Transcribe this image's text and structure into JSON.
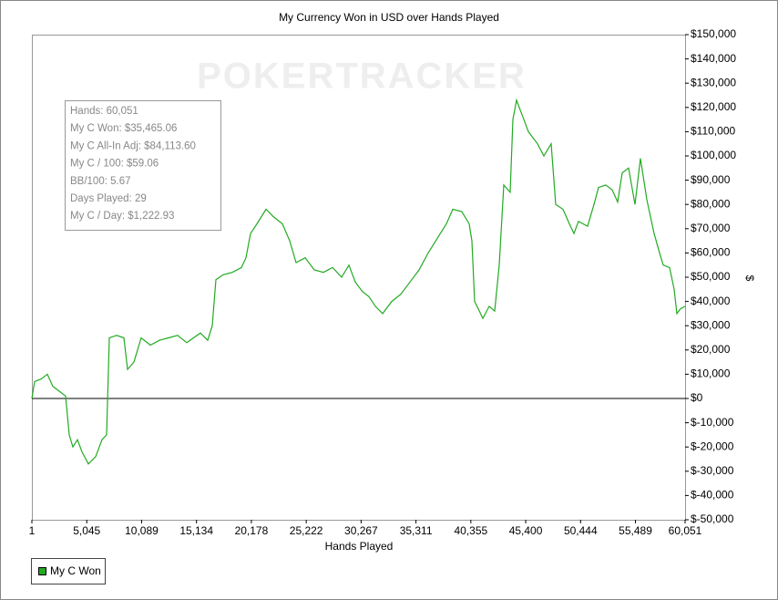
{
  "chart_data": {
    "type": "line",
    "title": "My Currency Won in USD over Hands Played",
    "watermark": "POKERTRACKER",
    "x_label": "Hands Played",
    "y_label": "$",
    "annotations": [
      "Hands: 60,051",
      "My C Won: $35,465.06",
      "My C All-In Adj: $84,113.60",
      "My C / 100: $59.06",
      "BB/100: 5.67",
      "Days Played: 29",
      "My C / Day: $1,222.93"
    ],
    "zero_line": true,
    "legend": "bottom-left",
    "xlim": [
      1,
      60051
    ],
    "xticks": [
      1,
      {
        "value": 5045,
        "label": "5,045"
      },
      {
        "value": 10089,
        "label": "10,089"
      },
      {
        "value": 15134,
        "label": "15,134"
      },
      {
        "value": 20178,
        "label": "20,178"
      },
      {
        "value": 25222,
        "label": "25,222"
      },
      {
        "value": 30267,
        "label": "30,267"
      },
      {
        "value": 35311,
        "label": "35,311"
      },
      {
        "value": 40355,
        "label": "40,355"
      },
      {
        "value": 45400,
        "label": "45,400"
      },
      {
        "value": 50444,
        "label": "50,444"
      },
      {
        "value": 55489,
        "label": "55,489"
      },
      {
        "value": 60051,
        "label": "60,051"
      }
    ],
    "ylim": [
      -50000,
      150000
    ],
    "yticks": [
      {
        "value": -50000,
        "label": "$-50,000"
      },
      {
        "value": -40000,
        "label": "$-40,000"
      },
      {
        "value": -30000,
        "label": "$-30,000"
      },
      {
        "value": -20000,
        "label": "$-20,000"
      },
      {
        "value": -10000,
        "label": "$-10,000"
      },
      {
        "value": 0,
        "label": "$0"
      },
      {
        "value": 10000,
        "label": "$10,000"
      },
      {
        "value": 20000,
        "label": "$20,000"
      },
      {
        "value": 30000,
        "label": "$30,000"
      },
      {
        "value": 40000,
        "label": "$40,000"
      },
      {
        "value": 50000,
        "label": "$50,000"
      },
      {
        "value": 60000,
        "label": "$60,000"
      },
      {
        "value": 70000,
        "label": "$70,000"
      },
      {
        "value": 80000,
        "label": "$80,000"
      },
      {
        "value": 90000,
        "label": "$90,000"
      },
      {
        "value": 100000,
        "label": "$100,000"
      },
      {
        "value": 110000,
        "label": "$110,000"
      },
      {
        "value": 120000,
        "label": "$120,000"
      },
      {
        "value": 130000,
        "label": "$130,000"
      },
      {
        "value": 140000,
        "label": "$140,000"
      },
      {
        "value": 150000,
        "label": "$150,000"
      }
    ],
    "x": [
      1,
      252,
      839,
      1425,
      1927,
      2514,
      3100,
      3435,
      3770,
      4189,
      4607,
      5194,
      5864,
      6450,
      6869,
      7120,
      7790,
      8460,
      8795,
      9381,
      10051,
      10889,
      11726,
      12564,
      13401,
      14239,
      15495,
      16165,
      16584,
      16918,
      17588,
      18426,
      19263,
      19681,
      20101,
      20687,
      21525,
      22194,
      23032,
      23702,
      24288,
      25126,
      25963,
      26801,
      27638,
      28476,
      29146,
      29732,
      30402,
      30989,
      31575,
      32245,
      33082,
      33920,
      34757,
      35595,
      36432,
      37270,
      38107,
      38694,
      39531,
      40201,
      40452,
      40704,
      41039,
      41457,
      42044,
      42546,
      42965,
      43384,
      43970,
      44221,
      44556,
      45226,
      45645,
      46482,
      47069,
      47739,
      48157,
      48827,
      49414,
      49832,
      50251,
      51089,
      51675,
      52094,
      52764,
      53350,
      53853,
      54271,
      54857,
      55444,
      55946,
      56532,
      57202,
      57705,
      58040,
      58626,
      59045,
      59296,
      59631,
      60051
    ],
    "series": [
      {
        "name": "My C Won",
        "color": "#22aa22",
        "values": [
          0,
          7000,
          8000,
          10000,
          5000,
          3000,
          1000,
          -15000,
          -20000,
          -17000,
          -22000,
          -27000,
          -24000,
          -17000,
          -15000,
          25000,
          26000,
          25000,
          12000,
          15000,
          25000,
          22000,
          24000,
          25000,
          26000,
          23000,
          27000,
          24000,
          30000,
          49000,
          51000,
          52000,
          54000,
          58000,
          68000,
          72000,
          78000,
          75000,
          72000,
          65000,
          56000,
          58000,
          53000,
          52000,
          54000,
          50000,
          55000,
          48000,
          44000,
          42000,
          38000,
          35000,
          40000,
          43000,
          48000,
          53000,
          60000,
          66000,
          72000,
          78000,
          77000,
          72000,
          65000,
          40000,
          37000,
          33000,
          38000,
          36000,
          55000,
          88000,
          85000,
          115000,
          123000,
          115000,
          110000,
          105000,
          100000,
          105000,
          80000,
          78000,
          72000,
          68000,
          73000,
          71000,
          80000,
          87000,
          88000,
          86000,
          81000,
          93000,
          95000,
          80000,
          99000,
          82000,
          68000,
          60000,
          55000,
          54000,
          45000,
          35000,
          37000,
          38000
        ]
      }
    ]
  }
}
